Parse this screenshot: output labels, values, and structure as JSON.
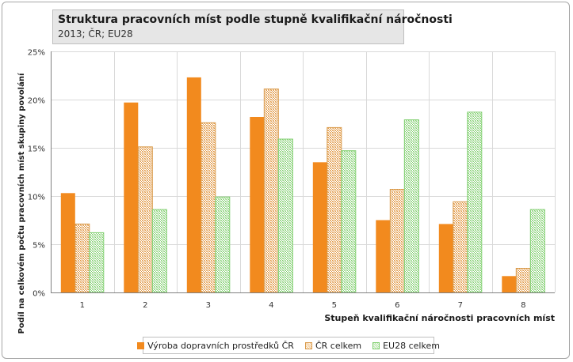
{
  "title": "Struktura pracovních míst podle stupně kvalifikační náročnosti",
  "subtitle": "2013; ČR; EU28",
  "chart_data": {
    "type": "bar",
    "title": "Struktura pracovních míst podle stupně kvalifikační náročnosti",
    "subtitle": "2013; ČR; EU28",
    "xlabel": "Stupeň kvalifikační náročnosti pracovních míst",
    "ylabel": "Podíl na celkovém počtu pracovních míst skupiny povolání",
    "categories": [
      "1",
      "2",
      "3",
      "4",
      "5",
      "6",
      "7",
      "8"
    ],
    "ylim": [
      0,
      25
    ],
    "yticks": [
      "0%",
      "5%",
      "10%",
      "15%",
      "20%",
      "25%"
    ],
    "grid": true,
    "legend_position": "bottom",
    "series": [
      {
        "name": "Výroba dopravních prostředků ČR",
        "color": "#f28a1e",
        "values": [
          10.3,
          19.7,
          22.3,
          18.2,
          13.5,
          7.5,
          7.1,
          1.7
        ]
      },
      {
        "name": "ČR celkem",
        "color": "#e3a65a",
        "values": [
          7.1,
          15.1,
          17.6,
          21.1,
          17.1,
          10.7,
          9.4,
          2.5
        ]
      },
      {
        "name": "EU28 celkem",
        "color": "#8fd67e",
        "values": [
          6.2,
          8.6,
          9.9,
          15.9,
          14.7,
          17.9,
          18.7,
          8.6
        ]
      }
    ]
  }
}
